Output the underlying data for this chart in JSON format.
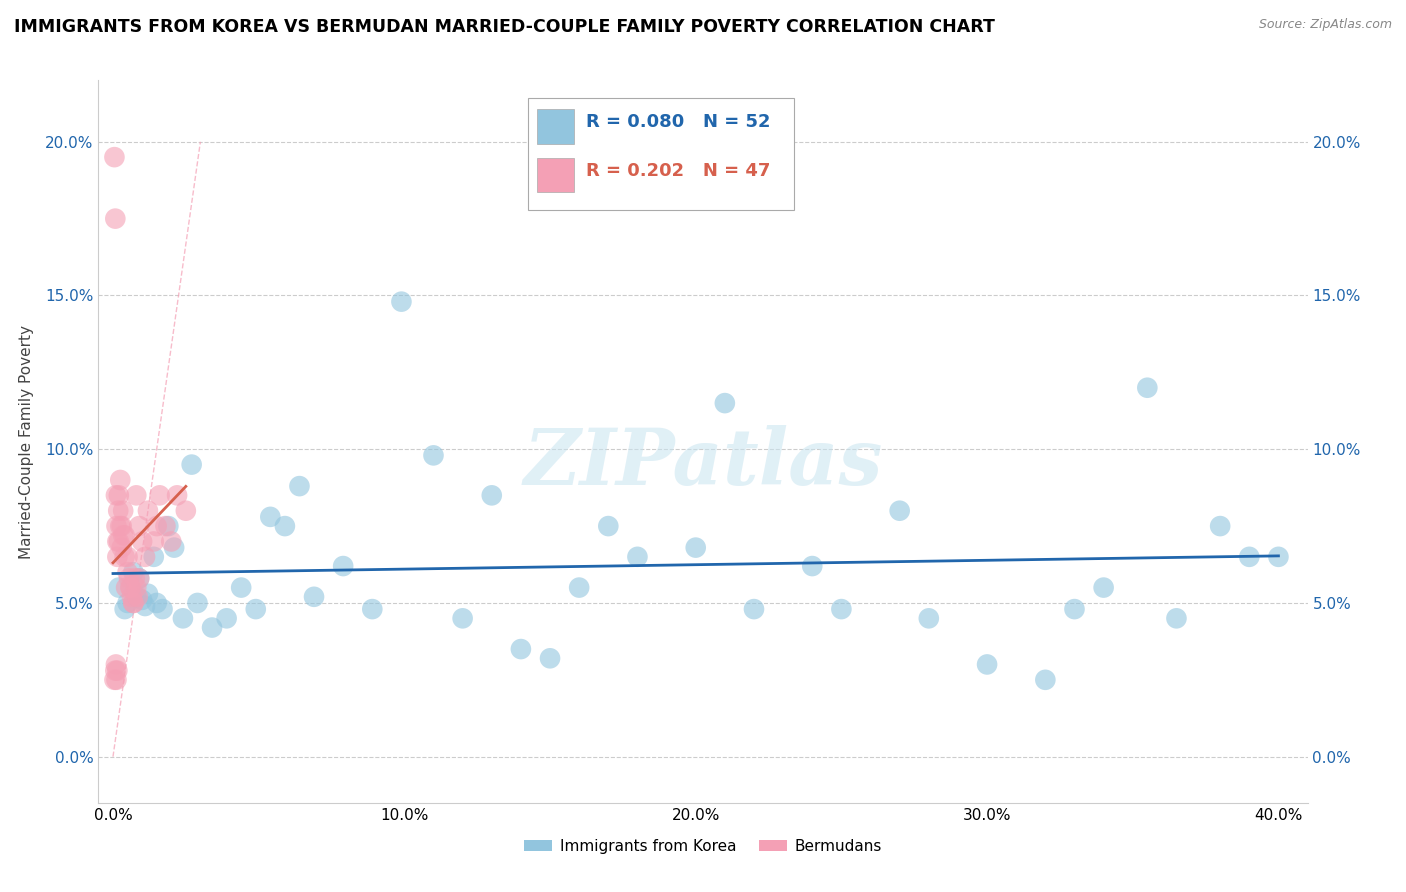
{
  "title": "IMMIGRANTS FROM KOREA VS BERMUDAN MARRIED-COUPLE FAMILY POVERTY CORRELATION CHART",
  "source": "Source: ZipAtlas.com",
  "ylabel": "Married-Couple Family Poverty",
  "x_ticks": [
    0.0,
    10.0,
    20.0,
    30.0,
    40.0
  ],
  "y_ticks": [
    0.0,
    5.0,
    10.0,
    15.0,
    20.0
  ],
  "xlim": [
    -0.5,
    41.0
  ],
  "ylim": [
    -1.5,
    22.0
  ],
  "legend_r1": "R = 0.080",
  "legend_n1": "N = 52",
  "legend_r2": "R = 0.202",
  "legend_n2": "N = 47",
  "blue_color": "#92c5de",
  "pink_color": "#f4a0b5",
  "blue_line_color": "#2166ac",
  "pink_line_color": "#d6604d",
  "diag_line_color": "#f4a0b5",
  "watermark": "ZIPatlas",
  "blue_scatter_x": [
    0.2,
    0.4,
    0.5,
    0.7,
    0.8,
    0.9,
    1.0,
    1.1,
    1.2,
    1.4,
    1.5,
    1.7,
    1.9,
    2.1,
    2.4,
    2.7,
    2.9,
    3.4,
    3.9,
    4.4,
    4.9,
    5.4,
    5.9,
    6.4,
    6.9,
    7.9,
    8.9,
    9.9,
    11.0,
    12.0,
    13.0,
    14.0,
    15.0,
    16.0,
    17.0,
    18.0,
    20.0,
    21.0,
    22.0,
    24.0,
    25.0,
    27.0,
    28.0,
    30.0,
    32.0,
    33.0,
    34.0,
    35.5,
    36.5,
    38.0,
    39.0,
    40.0
  ],
  "blue_scatter_y": [
    5.5,
    4.8,
    5.0,
    6.0,
    5.2,
    5.8,
    5.1,
    4.9,
    5.3,
    6.5,
    5.0,
    4.8,
    7.5,
    6.8,
    4.5,
    9.5,
    5.0,
    4.2,
    4.5,
    5.5,
    4.8,
    7.8,
    7.5,
    8.8,
    5.2,
    6.2,
    4.8,
    14.8,
    9.8,
    4.5,
    8.5,
    3.5,
    3.2,
    5.5,
    7.5,
    6.5,
    6.8,
    11.5,
    4.8,
    6.2,
    4.8,
    8.0,
    4.5,
    3.0,
    2.5,
    4.8,
    5.5,
    12.0,
    4.5,
    7.5,
    6.5,
    6.5
  ],
  "pink_scatter_x": [
    0.05,
    0.08,
    0.1,
    0.12,
    0.15,
    0.18,
    0.2,
    0.25,
    0.3,
    0.35,
    0.4,
    0.5,
    0.6,
    0.7,
    0.8,
    0.9,
    1.0,
    1.1,
    1.2,
    1.4,
    1.5,
    1.6,
    1.8,
    2.0,
    2.2,
    2.5,
    0.15,
    0.2,
    0.25,
    0.3,
    0.35,
    0.4,
    0.45,
    0.5,
    0.55,
    0.6,
    0.65,
    0.7,
    0.75,
    0.8,
    0.85,
    0.9,
    0.05,
    0.08,
    0.1,
    0.12,
    0.15
  ],
  "pink_scatter_y": [
    19.5,
    17.5,
    8.5,
    7.5,
    7.0,
    8.0,
    8.5,
    9.0,
    7.5,
    8.0,
    7.2,
    6.5,
    5.5,
    5.0,
    8.5,
    7.5,
    7.0,
    6.5,
    8.0,
    7.0,
    7.5,
    8.5,
    7.5,
    7.0,
    8.5,
    8.0,
    6.5,
    7.0,
    7.5,
    6.8,
    7.2,
    6.5,
    5.5,
    6.0,
    5.8,
    5.5,
    5.2,
    5.0,
    5.8,
    5.5,
    5.2,
    5.8,
    2.5,
    2.8,
    3.0,
    2.5,
    2.8
  ]
}
